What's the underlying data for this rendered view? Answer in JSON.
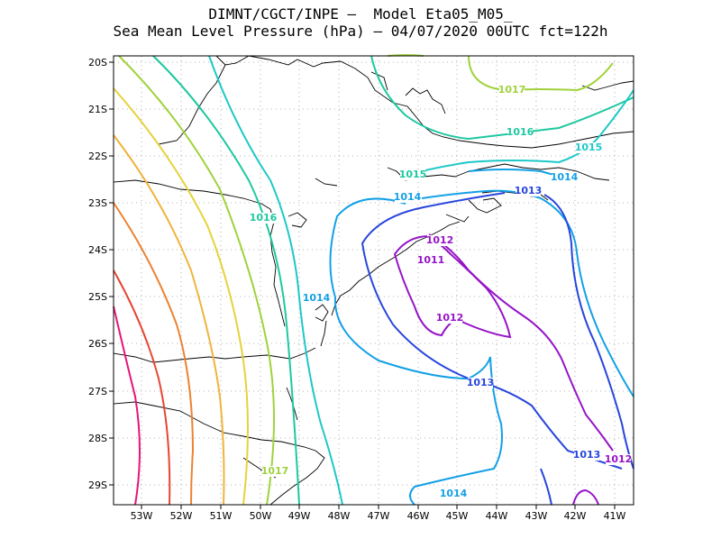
{
  "title": {
    "line1": "DIMNT/CGCT/INPE –  Model Eta05_M05_",
    "line2": "Sea Mean Level Pressure (hPa) – 04/07/2020 00UTC fct=122h"
  },
  "axes": {
    "lon_labels": [
      "53W",
      "52W",
      "51W",
      "50W",
      "49W",
      "48W",
      "47W",
      "46W",
      "45W",
      "44W",
      "43W",
      "42W",
      "41W"
    ],
    "lat_labels": [
      "20S",
      "21S",
      "22S",
      "23S",
      "24S",
      "25S",
      "26S",
      "27S",
      "28S",
      "29S"
    ]
  },
  "chart_data": {
    "type": "contour",
    "field": "Sea Mean Level Pressure (hPa)",
    "lon_range": [
      -53.7,
      -40.5
    ],
    "lat_range": [
      -29.4,
      -19.9
    ],
    "contour_labels": [
      {
        "text": "1017",
        "color": "#a0d23c"
      },
      {
        "text": "1016",
        "color": "#1ec8a0"
      },
      {
        "text": "1015",
        "color": "#1ec8a0"
      },
      {
        "text": "1015",
        "color": "#1ec8c8"
      },
      {
        "text": "1014",
        "color": "#14a0e6"
      },
      {
        "text": "1014",
        "color": "#14a0e6"
      },
      {
        "text": "1016",
        "color": "#1ec8a0"
      },
      {
        "text": "1013",
        "color": "#2846dc"
      },
      {
        "text": "1012",
        "color": "#9614c8"
      },
      {
        "text": "1011",
        "color": "#9614c8"
      },
      {
        "text": "1014",
        "color": "#14a0e6"
      },
      {
        "text": "1012",
        "color": "#9614c8"
      },
      {
        "text": "1013",
        "color": "#2846dc"
      },
      {
        "text": "1013",
        "color": "#2846dc"
      },
      {
        "text": "1012",
        "color": "#9614c8"
      },
      {
        "text": "1017",
        "color": "#a0d23c"
      },
      {
        "text": "1014",
        "color": "#14a0e6"
      }
    ]
  }
}
